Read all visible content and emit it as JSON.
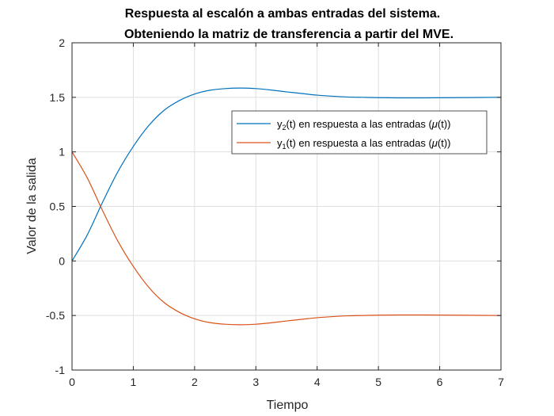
{
  "chart_data": {
    "type": "line",
    "title": [
      "Respuesta al escalón a ambas entradas del sistema.",
      "Obteniendo la matriz de transferencia a partir del MVE."
    ],
    "xlabel": "Tiempo",
    "ylabel": "Valor de la salida",
    "xlim": [
      0,
      7
    ],
    "ylim": [
      -1,
      2
    ],
    "xticks": [
      0,
      1,
      2,
      3,
      4,
      5,
      6,
      7
    ],
    "yticks": [
      -1,
      -0.5,
      0,
      0.5,
      1,
      1.5,
      2
    ],
    "grid": true,
    "legend_position": "upper-right",
    "series": [
      {
        "legend": {
          "prefix": "y",
          "subscript": "2",
          "suffix": "(t) en respuesta a las entradas (",
          "mu": "μ",
          "tail": "(t))"
        },
        "color": "#0072BD",
        "x": [
          0,
          0.25,
          0.5,
          0.75,
          1,
          1.25,
          1.5,
          1.75,
          2,
          2.25,
          2.5,
          2.75,
          3,
          3.25,
          3.5,
          3.75,
          4,
          4.25,
          4.5,
          4.75,
          5,
          5.5,
          6,
          6.5,
          7
        ],
        "y": [
          0,
          0.24,
          0.54,
          0.82,
          1.05,
          1.24,
          1.38,
          1.47,
          1.53,
          1.565,
          1.58,
          1.585,
          1.58,
          1.567,
          1.55,
          1.535,
          1.52,
          1.51,
          1.503,
          1.5,
          1.497,
          1.495,
          1.496,
          1.498,
          1.5
        ]
      },
      {
        "legend": {
          "prefix": "y",
          "subscript": "1",
          "suffix": "(t) en respuesta a las entradas (",
          "mu": "μ",
          "tail": "(t))"
        },
        "color": "#D95319",
        "x": [
          0,
          0.25,
          0.5,
          0.75,
          1,
          1.25,
          1.5,
          1.75,
          2,
          2.25,
          2.5,
          2.75,
          3,
          3.25,
          3.5,
          3.75,
          4,
          4.25,
          4.5,
          4.75,
          5,
          5.5,
          6,
          6.5,
          7
        ],
        "y": [
          1,
          0.76,
          0.46,
          0.18,
          -0.05,
          -0.24,
          -0.38,
          -0.47,
          -0.53,
          -0.565,
          -0.58,
          -0.585,
          -0.58,
          -0.567,
          -0.55,
          -0.535,
          -0.52,
          -0.51,
          -0.503,
          -0.5,
          -0.497,
          -0.495,
          -0.496,
          -0.498,
          -0.5
        ]
      }
    ]
  }
}
